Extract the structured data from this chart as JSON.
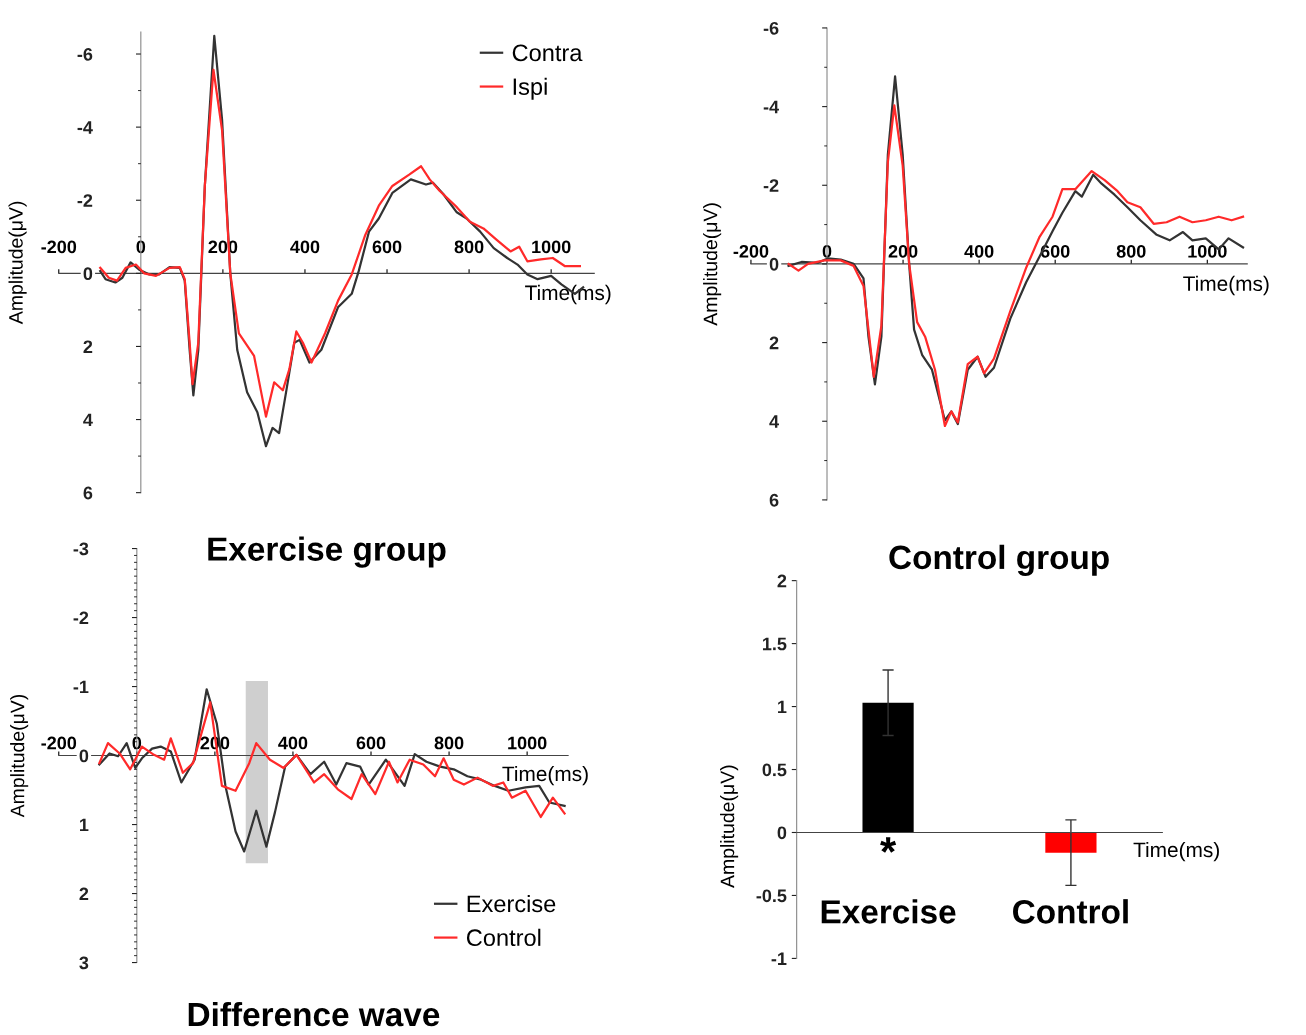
{
  "chart_data": [
    {
      "type": "line",
      "title": "Exercise group",
      "xlabel": "Time(ms)",
      "ylabel": "Amplitude(μV)",
      "xlim": [
        -200,
        1105
      ],
      "ylim": [
        6,
        -6.6
      ],
      "xticks": [
        -200,
        0,
        200,
        400,
        600,
        800,
        1000
      ],
      "yticks": [
        -6,
        -4,
        -2,
        0,
        2,
        4,
        6
      ],
      "legend": "top right",
      "series": [
        {
          "name": "Contra",
          "color": "#333333",
          "x": [
            -99,
            -86,
            -62,
            -45,
            -25,
            -4,
            21,
            45,
            70,
            95,
            107,
            119,
            128,
            140,
            156,
            179,
            198,
            218,
            235,
            259,
            284,
            305,
            321,
            337,
            354,
            374,
            387,
            411,
            440,
            481,
            514,
            531,
            556,
            580,
            613,
            658,
            695,
            712,
            737,
            770,
            794,
            827,
            860,
            893,
            918,
            942,
            967,
            1000,
            1025,
            1058,
            1078
          ],
          "values": [
            -0.06,
            0.16,
            0.25,
            0.12,
            -0.3,
            -0.1,
            0.03,
            0.03,
            -0.17,
            -0.15,
            0.2,
            2.1,
            3.34,
            2.1,
            -2.4,
            -6.5,
            -4.2,
            0,
            2.1,
            3.25,
            3.8,
            4.73,
            4.23,
            4.37,
            3.25,
            1.9,
            1.82,
            2.44,
            2.09,
            0.92,
            0.56,
            -0.06,
            -1.14,
            -1.5,
            -2.2,
            -2.57,
            -2.43,
            -2.48,
            -2.17,
            -1.67,
            -1.5,
            -1.14,
            -0.69,
            -0.42,
            -0.24,
            0.03,
            0.16,
            0.07,
            0.3,
            0.56,
            0.38
          ]
        },
        {
          "name": "Ispi",
          "color": "#ff2a2a",
          "x": [
            -99,
            -78,
            -58,
            -37,
            -12,
            8,
            37,
            70,
            95,
            107,
            119,
            126,
            140,
            156,
            177,
            198,
            218,
            239,
            276,
            305,
            325,
            346,
            362,
            379,
            395,
            416,
            449,
            481,
            514,
            547,
            580,
            613,
            654,
            683,
            704,
            728,
            770,
            802,
            835,
            868,
            901,
            922,
            942,
            975,
            1004,
            1033,
            1070
          ],
          "values": [
            -0.15,
            0.12,
            0.2,
            -0.15,
            -0.24,
            0,
            0.07,
            -0.15,
            -0.17,
            0.16,
            1.9,
            3.03,
            1.9,
            -2.4,
            -5.57,
            -3.91,
            0,
            1.64,
            2.26,
            3.92,
            2.98,
            3.2,
            2.62,
            1.59,
            1.9,
            2.44,
            1.64,
            0.74,
            0.03,
            -1.05,
            -1.85,
            -2.39,
            -2.7,
            -2.93,
            -2.57,
            -2.26,
            -1.81,
            -1.41,
            -1.23,
            -0.91,
            -0.6,
            -0.73,
            -0.33,
            -0.38,
            -0.42,
            -0.2,
            -0.2
          ]
        }
      ]
    },
    {
      "type": "line",
      "title": "Control group",
      "xlabel": "Time(ms)",
      "ylabel": "Amplitude(μV)",
      "xlim": [
        -200,
        1105
      ],
      "ylim": [
        6,
        -6
      ],
      "xticks": [
        -200,
        0,
        200,
        400,
        600,
        800,
        1000
      ],
      "yticks": [
        -6,
        -4,
        -2,
        0,
        2,
        4,
        6
      ],
      "series": [
        {
          "color": "#333333",
          "x": [
            -101,
            -67,
            -24,
            2,
            36,
            70,
            96,
            109,
            126,
            143,
            160,
            179,
            199,
            216,
            229,
            250,
            276,
            310,
            327,
            344,
            370,
            396,
            417,
            439,
            482,
            524,
            559,
            593,
            619,
            653,
            670,
            700,
            722,
            756,
            790,
            824,
            867,
            901,
            936,
            961,
            996,
            1030,
            1056,
            1094
          ],
          "values": [
            0.05,
            -0.05,
            -0.03,
            -0.14,
            -0.11,
            0,
            0.37,
            1.85,
            3.06,
            1.85,
            -2.78,
            -4.77,
            -2.78,
            0,
            1.67,
            2.31,
            2.69,
            3.98,
            3.75,
            4.07,
            2.69,
            2.36,
            2.87,
            2.64,
            1.39,
            0.46,
            -0.19,
            -0.83,
            -1.3,
            -1.85,
            -1.71,
            -2.27,
            -2.04,
            -1.76,
            -1.44,
            -1.11,
            -0.74,
            -0.6,
            -0.81,
            -0.6,
            -0.65,
            -0.37,
            -0.65,
            -0.42
          ]
        },
        {
          "color": "#ff2a2a",
          "x": [
            -101,
            -75,
            -50,
            -7,
            36,
            70,
            96,
            109,
            123,
            143,
            160,
            177,
            199,
            216,
            237,
            258,
            284,
            310,
            327,
            344,
            370,
            396,
            413,
            439,
            482,
            524,
            559,
            593,
            619,
            653,
            696,
            730,
            764,
            790,
            824,
            859,
            893,
            927,
            961,
            996,
            1030,
            1064,
            1094
          ],
          "values": [
            0,
            0.17,
            0,
            -0.09,
            -0.09,
            0.05,
            0.56,
            1.67,
            2.87,
            1.57,
            -2.59,
            -4.03,
            -2.5,
            0,
            1.48,
            1.85,
            2.69,
            4.12,
            3.75,
            4.03,
            2.55,
            2.36,
            2.78,
            2.41,
            1.2,
            0.09,
            -0.69,
            -1.2,
            -1.9,
            -1.9,
            -2.36,
            -2.13,
            -1.85,
            -1.57,
            -1.44,
            -1.02,
            -1.06,
            -1.2,
            -1.06,
            -1.11,
            -1.2,
            -1.11,
            -1.2
          ]
        }
      ]
    },
    {
      "type": "line",
      "title": "Difference wave",
      "xlabel": "Time(ms)",
      "ylabel": "Amplitude(μV)",
      "xlim": [
        -200,
        1105
      ],
      "ylim": [
        3,
        -3
      ],
      "xticks": [
        -200,
        0,
        200,
        400,
        600,
        800,
        1000
      ],
      "yticks": [
        -3,
        -2,
        -1,
        0,
        1,
        2,
        3
      ],
      "legend": "bottom right",
      "bands": [
        {
          "axis": "x",
          "from": 279,
          "to": 336,
          "color": "#cfcfcf"
        }
      ],
      "series": [
        {
          "name": "Exercise",
          "color": "#333333",
          "x": [
            -96,
            -70,
            -48,
            -26,
            -4,
            13,
            39,
            61,
            87,
            114,
            148,
            179,
            205,
            227,
            253,
            275,
            306,
            332,
            354,
            380,
            409,
            445,
            480,
            511,
            537,
            572,
            594,
            638,
            686,
            712,
            742,
            777,
            812,
            847,
            882,
            917,
            952,
            996,
            1031,
            1057,
            1096
          ],
          "values": [
            0.13,
            -0.03,
            0.01,
            -0.18,
            0.18,
            0.04,
            -0.1,
            -0.13,
            -0.06,
            0.39,
            0.06,
            -0.96,
            -0.46,
            0.44,
            1.1,
            1.39,
            0.8,
            1.32,
            0.82,
            0.16,
            -0.01,
            0.27,
            0.09,
            0.42,
            0.11,
            0.16,
            0.42,
            0.06,
            0.44,
            -0.02,
            0.09,
            0.16,
            0.2,
            0.3,
            0.35,
            0.44,
            0.51,
            0.46,
            0.44,
            0.68,
            0.73
          ]
        },
        {
          "name": "Control",
          "color": "#ff2a2a",
          "x": [
            -96,
            -74,
            -44,
            -17,
            13,
            44,
            70,
            87,
            118,
            144,
            188,
            218,
            253,
            288,
            306,
            341,
            376,
            409,
            454,
            480,
            515,
            550,
            576,
            611,
            646,
            668,
            699,
            734,
            764,
            786,
            812,
            838,
            873,
            913,
            939,
            961,
            996,
            1035,
            1066,
            1096
          ],
          "values": [
            0.11,
            -0.18,
            -0.03,
            0.2,
            -0.13,
            -0.01,
            0.06,
            -0.25,
            0.25,
            0.11,
            -0.77,
            0.44,
            0.51,
            0.11,
            -0.18,
            0.06,
            0.18,
            -0.01,
            0.39,
            0.27,
            0.49,
            0.63,
            0.27,
            0.56,
            0.09,
            0.39,
            0.06,
            0.13,
            0.3,
            0.04,
            0.35,
            0.42,
            0.32,
            0.44,
            0.39,
            0.61,
            0.51,
            0.89,
            0.61,
            0.84
          ]
        }
      ]
    },
    {
      "type": "bar",
      "xlabel": "Time(ms)",
      "ylabel": "Amplitude(μV)",
      "categories": [
        "Exercise",
        "Control"
      ],
      "values": [
        1.03,
        -0.16
      ],
      "colors": [
        "#000000",
        "#ff0000"
      ],
      "errors": [
        0.26,
        0.26
      ],
      "ylim": [
        -1,
        2
      ],
      "yticks": [
        -1,
        -0.5,
        0,
        0.5,
        1,
        1.5,
        2
      ],
      "annotations": [
        "*"
      ]
    }
  ]
}
